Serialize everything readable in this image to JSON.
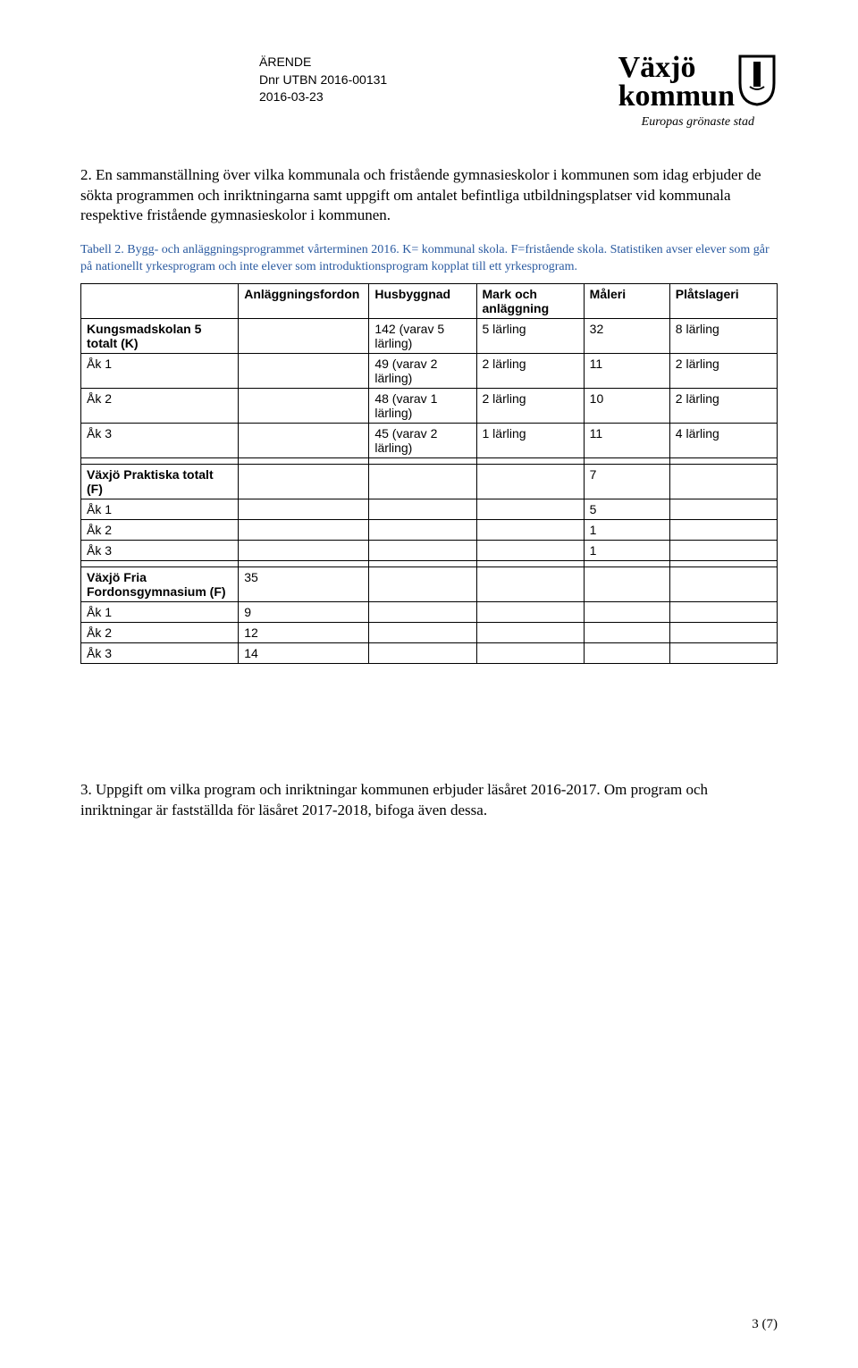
{
  "header": {
    "doc_type": "ÄRENDE",
    "doc_ref": "Dnr UTBN 2016-00131",
    "doc_date": "2016-03-23",
    "logo_line1": "Växjö",
    "logo_line2": "kommun",
    "logo_tagline": "Europas grönaste stad"
  },
  "para1": "2. En sammanställning över vilka kommunala och fristående gymnasieskolor i kommunen som idag erbjuder de sökta programmen och inriktningarna samt uppgift om antalet befintliga utbildningsplatser vid kommunala respektive fristående gymnasieskolor i kommunen.",
  "caption": "Tabell 2. Bygg- och anläggningsprogrammet vårterminen 2016. K= kommunal skola. F=fristående skola. Statistiken avser elever som går på nationellt yrkesprogram och inte elever som introduktionsprogram kopplat till ett yrkesprogram.",
  "table": {
    "columns": [
      "",
      "Anläggningsfordon",
      "Husbyggnad",
      "Mark och anläggning",
      "Måleri",
      "Plåtslageri"
    ],
    "rows": [
      [
        "Kungsmadskolan 5 totalt (K)",
        "",
        "142 (varav 5 lärling)",
        "5 lärling",
        "32",
        "8 lärling"
      ],
      [
        "Åk 1",
        "",
        "49 (varav 2 lärling)",
        "2 lärling",
        "11",
        "2 lärling"
      ],
      [
        "Åk 2",
        "",
        "48 (varav 1 lärling)",
        "2 lärling",
        "10",
        "2 lärling"
      ],
      [
        "Åk 3",
        "",
        "45 (varav 2 lärling)",
        "1 lärling",
        "11",
        "4 lärling"
      ],
      [
        "",
        "",
        "",
        "",
        "",
        ""
      ],
      [
        "Växjö Praktiska totalt (F)",
        "",
        "",
        "",
        "7",
        ""
      ],
      [
        "Åk 1",
        "",
        "",
        "",
        "5",
        ""
      ],
      [
        "Åk 2",
        "",
        "",
        "",
        "1",
        ""
      ],
      [
        "Åk 3",
        "",
        "",
        "",
        "1",
        ""
      ],
      [
        "",
        "",
        "",
        "",
        "",
        ""
      ],
      [
        "Växjö Fria Fordonsgymnasium (F)",
        "35",
        "",
        "",
        "",
        ""
      ],
      [
        "Åk 1",
        "9",
        "",
        "",
        "",
        ""
      ],
      [
        "Åk 2",
        "12",
        "",
        "",
        "",
        ""
      ],
      [
        "Åk 3",
        "14",
        "",
        "",
        "",
        ""
      ]
    ],
    "bold_label_rows": [
      0,
      5,
      10
    ]
  },
  "para2": "3. Uppgift om vilka program och inriktningar kommunen erbjuder läsåret 2016-2017. Om program och inriktningar är fastställda för läsåret 2017-2018, bifoga även dessa.",
  "footer": "3 (7)"
}
